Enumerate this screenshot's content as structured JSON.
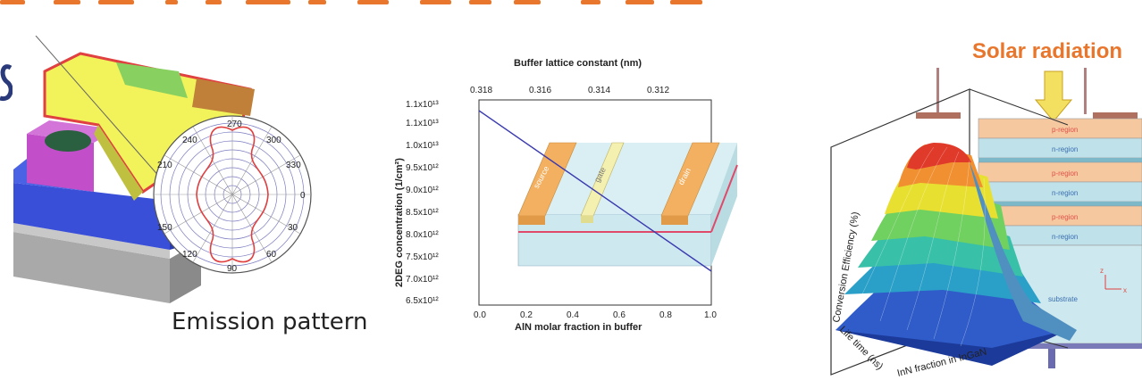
{
  "panel_led": {
    "caption": "Emission pattern",
    "polar_labels": {
      "a270": "270",
      "a240": "240",
      "a300": "300",
      "a210": "210",
      "a330": "330",
      "a0": "0",
      "a30": "30",
      "a150": "150",
      "a120": "120",
      "a90": "90",
      "a60": "60"
    }
  },
  "panel_hemt": {
    "top_axis_title": "Buffer lattice constant (nm)",
    "top_ticks": [
      "0.318",
      "0.316",
      "0.314",
      "0.312"
    ],
    "y_label": "2DEG concentration (1/cm²)",
    "x_label": "AlN molar fraction in buffer",
    "x_ticks": [
      "0.0",
      "0.2",
      "0.4",
      "0.6",
      "0.8",
      "1.0"
    ],
    "y_ticks": [
      "1.1x10¹³",
      "1.1x10¹³",
      "1.0x10¹³",
      "9.5x10¹²",
      "9.0x10¹²",
      "8.5x10¹²",
      "8.0x10¹²",
      "7.5x10¹²",
      "7.0x10¹²",
      "6.5x10¹²"
    ],
    "contacts": {
      "source": "source",
      "gate": "gate",
      "drain": "drain"
    }
  },
  "panel_solar": {
    "title": "Solar radiation",
    "layers": [
      "p-region",
      "n-region",
      "p-region",
      "n-region",
      "p-region",
      "n-region",
      "substrate"
    ],
    "z_label": "Conversion Efficiency (%)",
    "x_label": "InN fraction in InGaN",
    "y_label": "Life time (ns)",
    "axis_z": "z",
    "axis_x": "x"
  },
  "colors": {
    "title_orange": "#e8762c",
    "led_yellow": "#f2f25a",
    "led_blue": "#3a4fd8",
    "led_magenta": "#c24fc9",
    "emission_red": "#e04040",
    "contact_orange": "#f3b060",
    "substrate_blue": "#cde8ee"
  }
}
